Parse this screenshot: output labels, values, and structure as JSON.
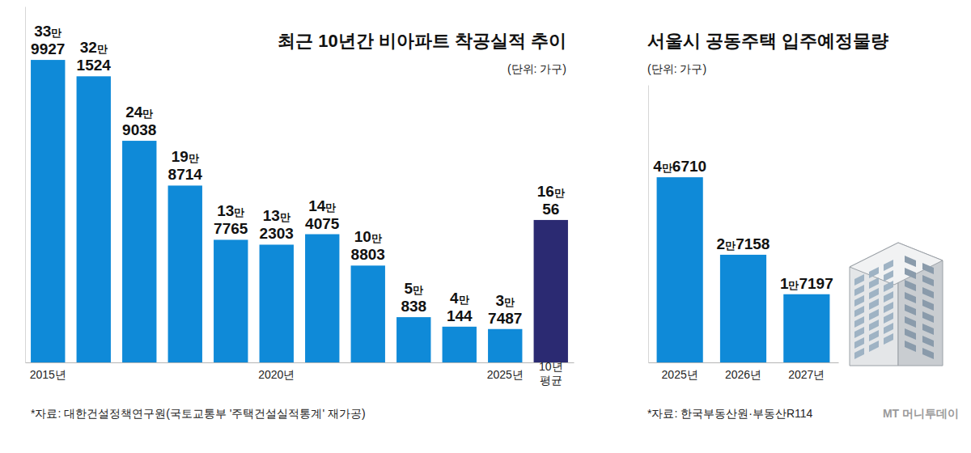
{
  "chart_data": [
    {
      "type": "bar",
      "title": "최근 10년간 비아파트 착공실적 추이",
      "subtitle": "(단위: 가구)",
      "source": "*자료: 대한건설정책연구원(국토교통부 '주택건설실적통계' 재가공)",
      "categories": [
        "2015년",
        null,
        null,
        null,
        null,
        "2020년",
        null,
        null,
        null,
        null,
        "2025년",
        "10년 평균"
      ],
      "values": [
        339927,
        321524,
        249038,
        198714,
        137765,
        132303,
        144075,
        108803,
        50838,
        40144,
        37487,
        160056
      ],
      "value_labels": [
        "33만9927",
        "32만1524",
        "24만9038",
        "19만8714",
        "13만7765",
        "13만2303",
        "14만4075",
        "10만8803",
        "5만838",
        "4만144",
        "3만7487",
        "16만56"
      ],
      "colors": [
        "#0f8ad8",
        "#0f8ad8",
        "#0f8ad8",
        "#0f8ad8",
        "#0f8ad8",
        "#0f8ad8",
        "#0f8ad8",
        "#0f8ad8",
        "#0f8ad8",
        "#0f8ad8",
        "#0f8ad8",
        "#2b2a72"
      ],
      "ylim": [
        0,
        400000
      ],
      "tick_labels": "x",
      "data_labels": true
    },
    {
      "type": "bar",
      "title": "서울시 공동주택 입주예정물량",
      "subtitle": "(단위: 가구)",
      "source": "*자료: 한국부동산원·부동산R114",
      "categories": [
        "2025년",
        "2026년",
        "2027년"
      ],
      "values": [
        46710,
        27158,
        17197
      ],
      "value_labels": [
        "4만6710",
        "2만7158",
        "1만7197"
      ],
      "color": "#0f8ad8",
      "ylim": [
        0,
        70000
      ],
      "tick_labels": "x",
      "data_labels": true
    }
  ],
  "credit": "MT 머니투데이"
}
